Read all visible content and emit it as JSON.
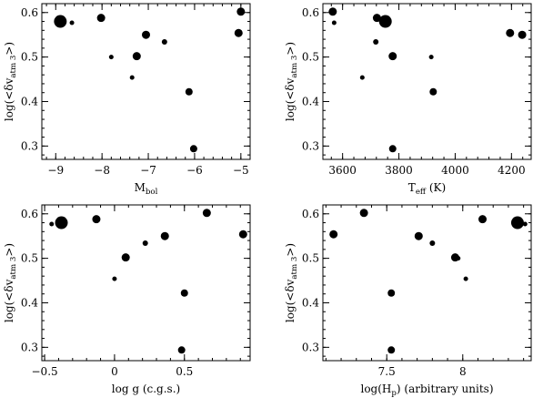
{
  "chart_data": [
    {
      "type": "scatter",
      "panel": "top-left",
      "xlabel": "M",
      "xlabel_sub": "bol",
      "xlabel_suffix": "",
      "ylabel": "log(<δv",
      "ylabel_sub": "atm 3",
      "ylabel_suffix": ">)",
      "xlim": [
        -9.3,
        -4.8
      ],
      "ylim": [
        0.27,
        0.62
      ],
      "xticks": [
        -9,
        -8,
        -7,
        -6,
        -5
      ],
      "yticks": [
        0.3,
        0.4,
        0.5,
        0.6
      ],
      "grid": false,
      "points": [
        {
          "x": -8.9,
          "y": 0.58,
          "size": 7
        },
        {
          "x": -8.65,
          "y": 0.577,
          "size": 2.5
        },
        {
          "x": -8.02,
          "y": 0.588,
          "size": 4.5
        },
        {
          "x": -7.8,
          "y": 0.5,
          "size": 2.5
        },
        {
          "x": -7.35,
          "y": 0.454,
          "size": 2.5
        },
        {
          "x": -7.25,
          "y": 0.502,
          "size": 4.5
        },
        {
          "x": -7.05,
          "y": 0.55,
          "size": 4.5
        },
        {
          "x": -6.65,
          "y": 0.534,
          "size": 3
        },
        {
          "x": -6.12,
          "y": 0.422,
          "size": 4
        },
        {
          "x": -6.02,
          "y": 0.294,
          "size": 4
        },
        {
          "x": -5.05,
          "y": 0.554,
          "size": 4.5
        },
        {
          "x": -5.0,
          "y": 0.602,
          "size": 4.5
        }
      ]
    },
    {
      "type": "scatter",
      "panel": "top-right",
      "xlabel": "T",
      "xlabel_sub": "eff",
      "xlabel_suffix": " (K)",
      "ylabel": "log(<δv",
      "ylabel_sub": "atm 3",
      "ylabel_suffix": ">)",
      "xlim": [
        3530,
        4270
      ],
      "ylim": [
        0.27,
        0.62
      ],
      "xticks": [
        3600,
        3800,
        4000,
        4200
      ],
      "yticks": [
        0.3,
        0.4,
        0.5,
        0.6
      ],
      "grid": false,
      "points": [
        {
          "x": 3565,
          "y": 0.602,
          "size": 4.5
        },
        {
          "x": 3570,
          "y": 0.577,
          "size": 2.5
        },
        {
          "x": 3670,
          "y": 0.454,
          "size": 2.5
        },
        {
          "x": 3718,
          "y": 0.534,
          "size": 3
        },
        {
          "x": 3722,
          "y": 0.588,
          "size": 4.5
        },
        {
          "x": 3752,
          "y": 0.58,
          "size": 7
        },
        {
          "x": 3778,
          "y": 0.502,
          "size": 4.5
        },
        {
          "x": 3778,
          "y": 0.294,
          "size": 4
        },
        {
          "x": 3915,
          "y": 0.5,
          "size": 2.5
        },
        {
          "x": 3922,
          "y": 0.422,
          "size": 4
        },
        {
          "x": 4195,
          "y": 0.554,
          "size": 4.5
        },
        {
          "x": 4238,
          "y": 0.55,
          "size": 4.5
        }
      ]
    },
    {
      "type": "scatter",
      "panel": "bottom-left",
      "xlabel": "log g (c.g.s.)",
      "xlabel_sub": "",
      "xlabel_suffix": "",
      "ylabel": "log(<δv",
      "ylabel_sub": "atm 3",
      "ylabel_suffix": ">)",
      "xlim": [
        -0.52,
        0.97
      ],
      "ylim": [
        0.27,
        0.62
      ],
      "xticks": [
        -0.5,
        0,
        0.5
      ],
      "yticks": [
        0.3,
        0.4,
        0.5,
        0.6
      ],
      "grid": false,
      "points": [
        {
          "x": -0.45,
          "y": 0.577,
          "size": 2.5
        },
        {
          "x": -0.38,
          "y": 0.58,
          "size": 7
        },
        {
          "x": -0.13,
          "y": 0.588,
          "size": 4.5
        },
        {
          "x": 0.0,
          "y": 0.454,
          "size": 2.5
        },
        {
          "x": 0.08,
          "y": 0.502,
          "size": 4.5
        },
        {
          "x": 0.22,
          "y": 0.534,
          "size": 3
        },
        {
          "x": 0.36,
          "y": 0.55,
          "size": 4.5
        },
        {
          "x": 0.48,
          "y": 0.294,
          "size": 4
        },
        {
          "x": 0.5,
          "y": 0.422,
          "size": 4
        },
        {
          "x": 0.66,
          "y": 0.602,
          "size": 4.5
        },
        {
          "x": 0.92,
          "y": 0.554,
          "size": 4.5
        }
      ]
    },
    {
      "type": "scatter",
      "panel": "bottom-right",
      "xlabel": "log(H",
      "xlabel_sub": "p",
      "xlabel_suffix": ") (arbitrary units)",
      "ylabel": "log(<δv",
      "ylabel_sub": "atm 3",
      "ylabel_suffix": ">)",
      "xlim": [
        7.08,
        8.45
      ],
      "ylim": [
        0.27,
        0.62
      ],
      "xticks": [
        7.5,
        8
      ],
      "yticks": [
        0.3,
        0.4,
        0.5,
        0.6
      ],
      "grid": false,
      "points": [
        {
          "x": 7.15,
          "y": 0.554,
          "size": 4.5
        },
        {
          "x": 7.35,
          "y": 0.602,
          "size": 4.5
        },
        {
          "x": 7.53,
          "y": 0.422,
          "size": 4
        },
        {
          "x": 7.53,
          "y": 0.294,
          "size": 4
        },
        {
          "x": 7.71,
          "y": 0.55,
          "size": 4.5
        },
        {
          "x": 7.8,
          "y": 0.534,
          "size": 3
        },
        {
          "x": 7.95,
          "y": 0.502,
          "size": 4.5
        },
        {
          "x": 7.97,
          "y": 0.5,
          "size": 2.5
        },
        {
          "x": 8.02,
          "y": 0.454,
          "size": 2.5
        },
        {
          "x": 8.13,
          "y": 0.588,
          "size": 4.5
        },
        {
          "x": 8.36,
          "y": 0.58,
          "size": 7
        },
        {
          "x": 8.41,
          "y": 0.577,
          "size": 2.5
        }
      ]
    }
  ]
}
